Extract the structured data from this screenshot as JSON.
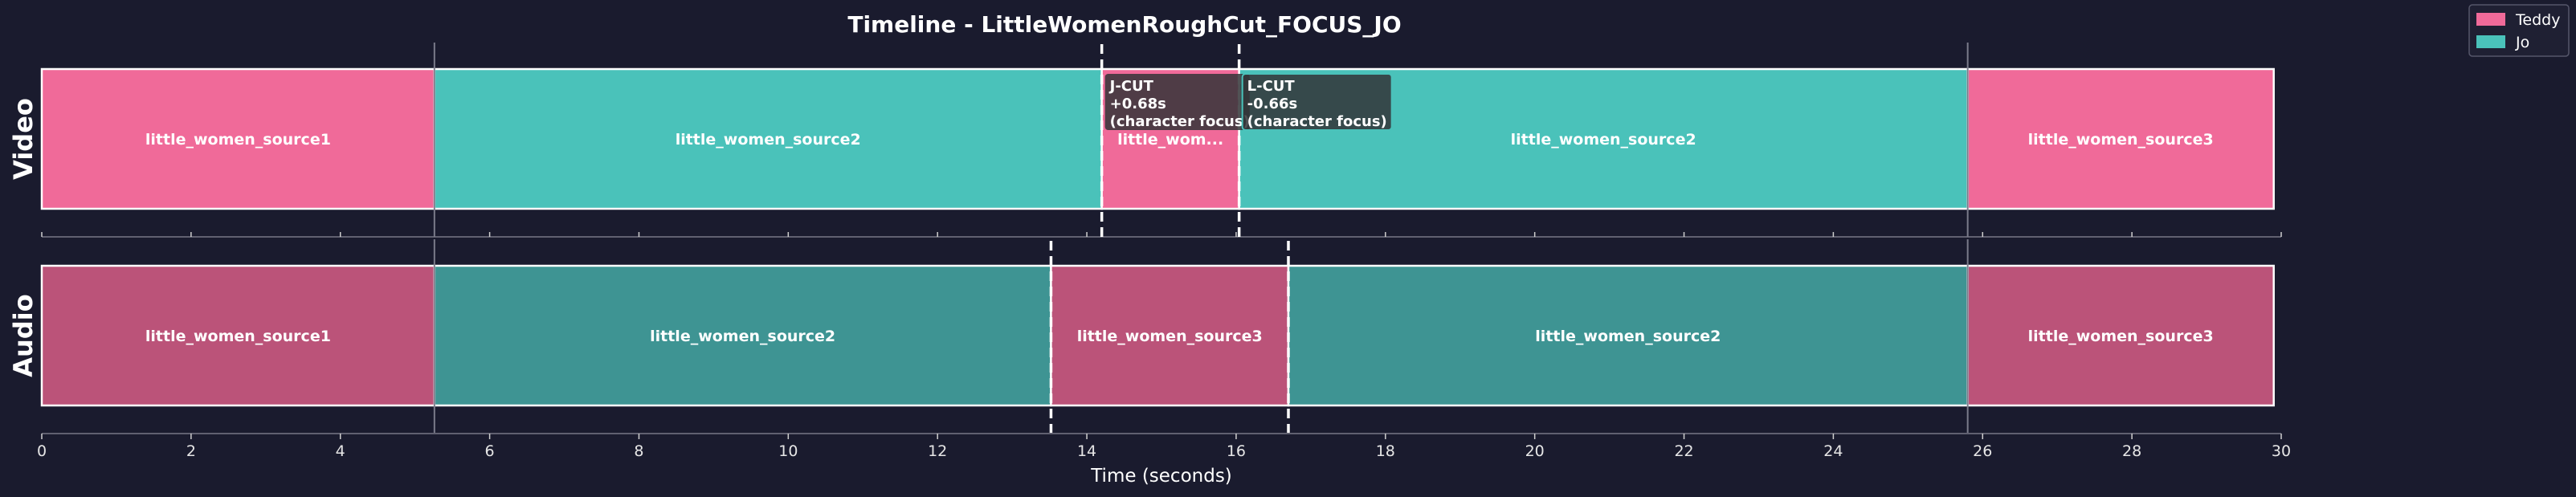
{
  "chart_data": {
    "type": "timeline",
    "title": "Timeline - LittleWomenRoughCut_FOCUS_JO",
    "xlabel": "Time (seconds)",
    "xlim": [
      0,
      30
    ],
    "xticks": [
      0,
      2,
      4,
      6,
      8,
      10,
      12,
      14,
      16,
      18,
      20,
      22,
      24,
      26,
      28,
      30
    ],
    "legend": {
      "placement": "top-right",
      "items": [
        {
          "name": "Teddy",
          "color": "#f06a99"
        },
        {
          "name": "Jo",
          "color": "#4ac2ba"
        }
      ]
    },
    "tracks": [
      {
        "name": "Video",
        "clips": [
          {
            "label": "little_women_source1",
            "start": 0.0,
            "end": 5.26,
            "speaker": "Teddy"
          },
          {
            "label": "little_women_source2",
            "start": 5.26,
            "end": 14.2,
            "speaker": "Jo"
          },
          {
            "label": "little_wom...",
            "start": 14.2,
            "end": 16.04,
            "speaker": "Teddy"
          },
          {
            "label": "little_women_source2",
            "start": 16.04,
            "end": 25.8,
            "speaker": "Jo"
          },
          {
            "label": "little_women_source3",
            "start": 25.8,
            "end": 29.9,
            "speaker": "Teddy"
          }
        ]
      },
      {
        "name": "Audio",
        "clips": [
          {
            "label": "little_women_source1",
            "start": 0.0,
            "end": 5.26,
            "speaker": "Teddy"
          },
          {
            "label": "little_women_source2",
            "start": 5.26,
            "end": 13.52,
            "speaker": "Jo"
          },
          {
            "label": "little_women_source3",
            "start": 13.52,
            "end": 16.7,
            "speaker": "Teddy"
          },
          {
            "label": "little_women_source2",
            "start": 16.7,
            "end": 25.8,
            "speaker": "Jo"
          },
          {
            "label": "little_women_source3",
            "start": 25.8,
            "end": 29.9,
            "speaker": "Teddy"
          }
        ]
      }
    ],
    "aligned_cuts": [
      5.26,
      25.8
    ],
    "split_edits": [
      {
        "type": "J-CUT",
        "video_cut": 14.2,
        "audio_cut": 13.52,
        "lines": [
          "J-CUT",
          "+0.68s",
          "(character focus)"
        ]
      },
      {
        "type": "L-CUT",
        "video_cut": 16.04,
        "audio_cut": 16.7,
        "lines": [
          "L-CUT",
          "-0.66s",
          "(character focus)"
        ]
      }
    ],
    "colors": {
      "background": "#1a1b2e",
      "teddy_video": "#f06a99",
      "jo_video": "#4ac2ba",
      "teddy_audio": "#bb5379",
      "jo_audio": "#3e9493",
      "clip_border": "#ffffff",
      "axis": "#606070",
      "cut_marker": "#ffffff",
      "annotation_bg": "#333437",
      "annotation_border": "#4ac2ba"
    }
  }
}
